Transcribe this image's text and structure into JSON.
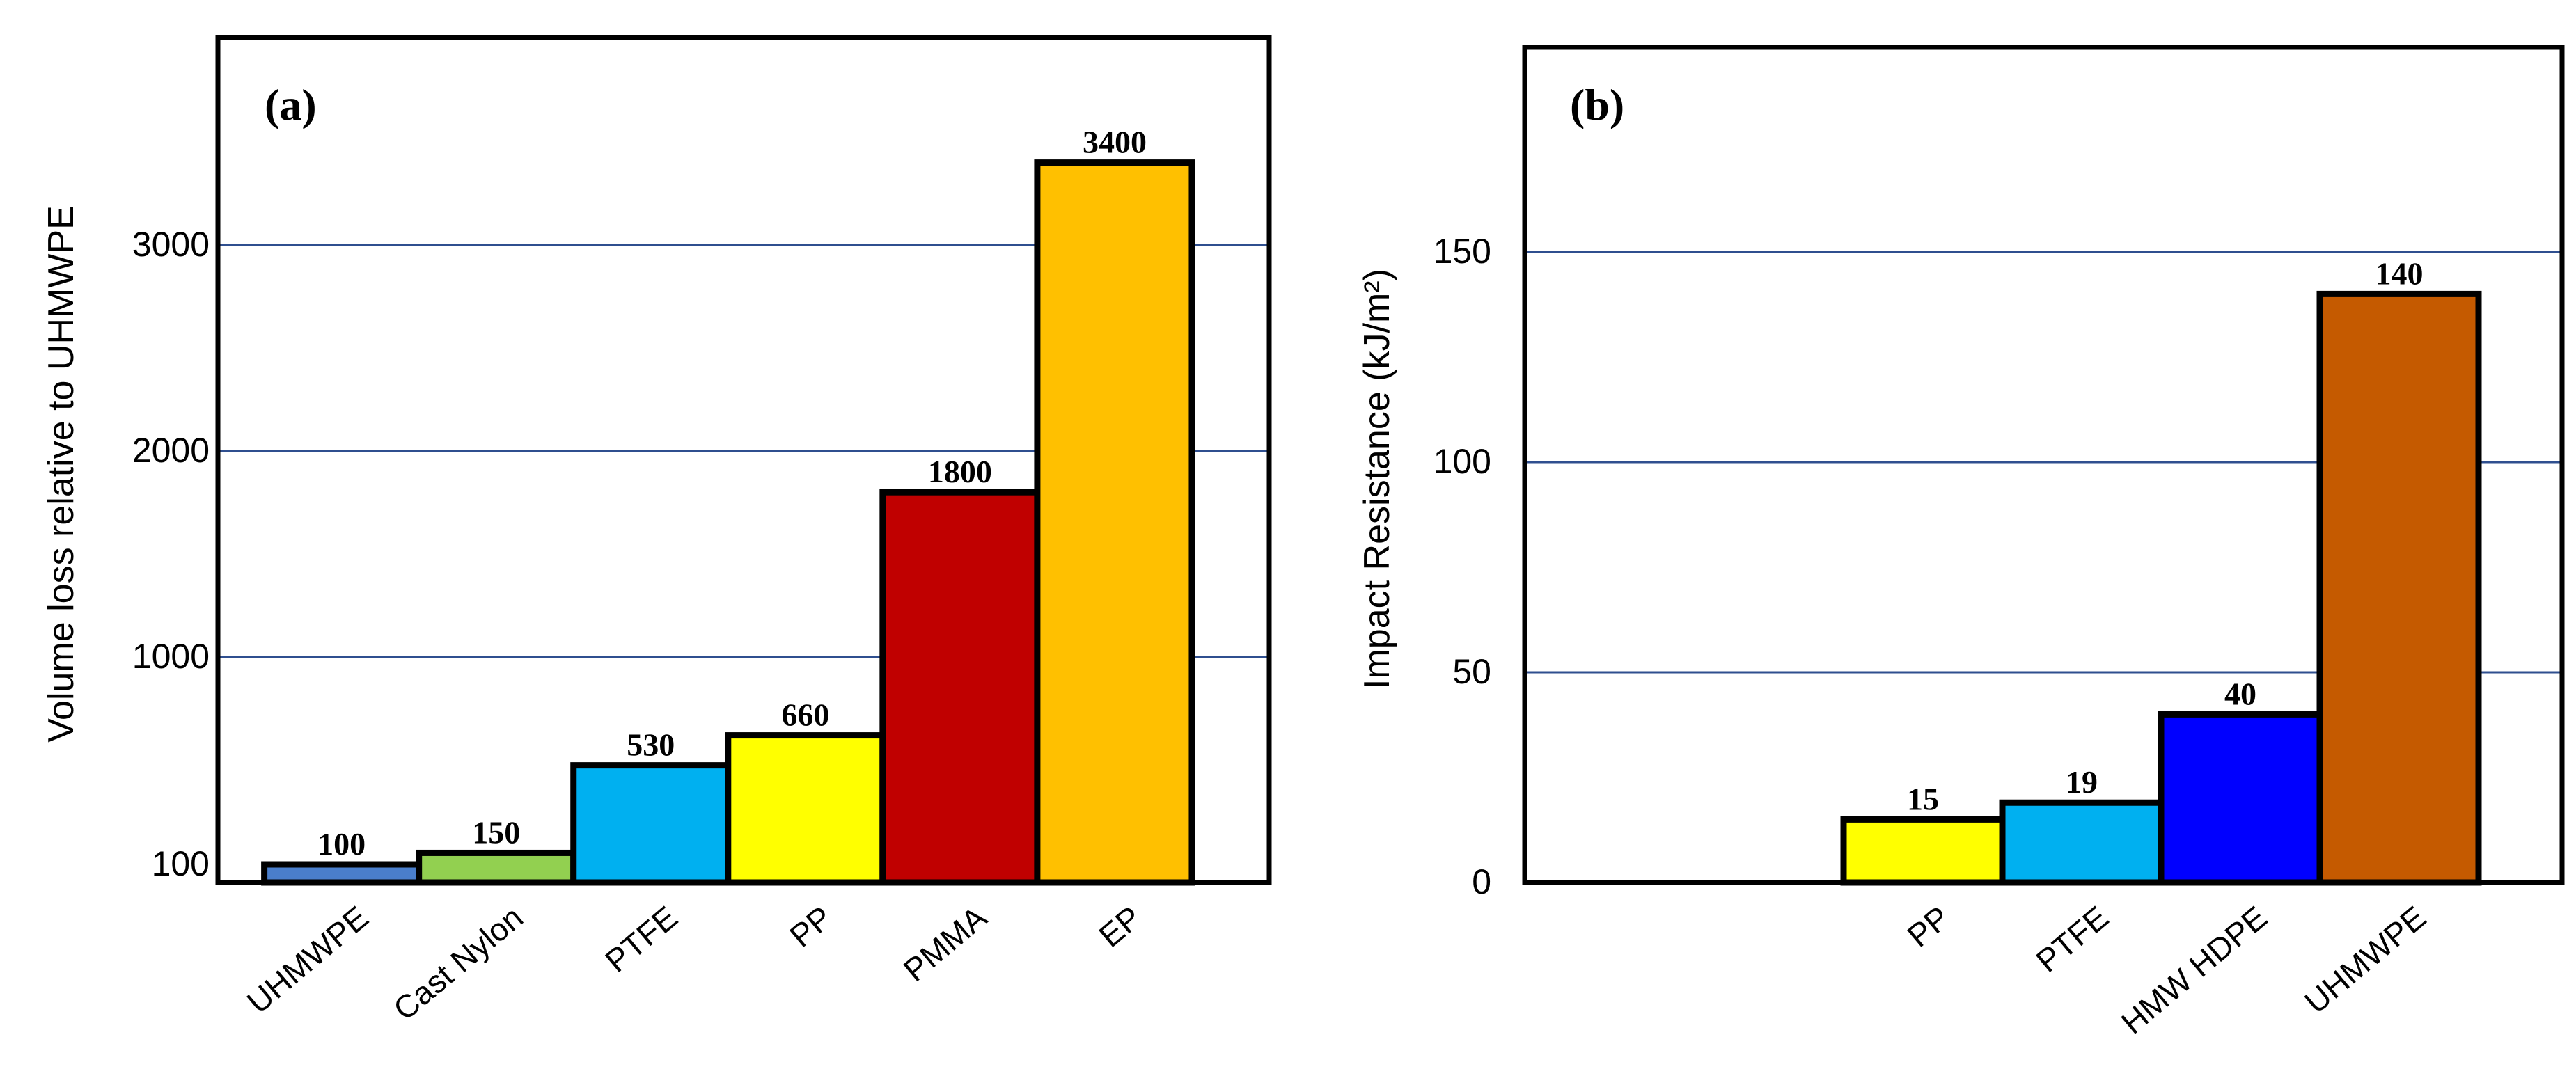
{
  "chart_data": [
    {
      "type": "bar",
      "panel_label": "(a)",
      "ylabel": "Volume loss relative to UHMWPE",
      "categories": [
        "UHMWPE",
        "Cast Nylon",
        "PTFE",
        "PP",
        "PMMA",
        "EP"
      ],
      "values": [
        100,
        150,
        530,
        660,
        1800,
        3400
      ],
      "data_labels": [
        "100",
        "150",
        "530",
        "660",
        "1800",
        "3400"
      ],
      "bar_colors": [
        "#4a7ecb",
        "#92d050",
        "#00b0f0",
        "#ffff00",
        "#c00000",
        "#ffc000"
      ],
      "yticks": [
        {
          "label": "100",
          "value": 100
        },
        {
          "label": "1000",
          "value": 1000
        },
        {
          "label": "2000",
          "value": 2000
        },
        {
          "label": "3000",
          "value": 3000
        }
      ],
      "gridlines": [
        1000,
        2000,
        3000
      ],
      "ylim": [
        0,
        4000
      ],
      "axis_scale": "piecewise",
      "grid": true
    },
    {
      "type": "bar",
      "panel_label": "(b)",
      "ylabel": "Impact Resistance (kJ/m²)",
      "categories": [
        "PP",
        "PTFE",
        "HMW HDPE",
        "UHMWPE"
      ],
      "values": [
        15,
        19,
        40,
        140
      ],
      "data_labels": [
        "15",
        "19",
        "40",
        "140"
      ],
      "bar_colors": [
        "#ffff00",
        "#00b0f0",
        "#0000ff",
        "#c55a00"
      ],
      "yticks": [
        {
          "label": "0",
          "value": 0
        },
        {
          "label": "50",
          "value": 50
        },
        {
          "label": "100",
          "value": 100
        },
        {
          "label": "150",
          "value": 150
        }
      ],
      "gridlines": [
        50,
        100,
        150
      ],
      "ylim": [
        0,
        200
      ],
      "grid": true
    }
  ],
  "colors": {
    "grid": "#2f4f8f",
    "axis": "#000000"
  }
}
